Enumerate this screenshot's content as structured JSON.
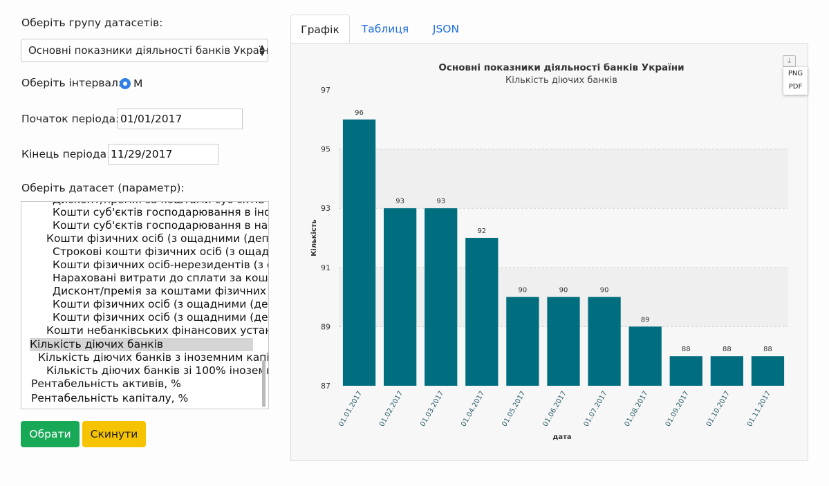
{
  "form": {
    "group_label": "Оберіть групу датасетів:",
    "group_selected": "Основні показники діяльності банків України",
    "interval_label": "Оберіть інтервал:",
    "interval_value": "M",
    "start_label": "Початок періода:",
    "start_value": "01/01/2017",
    "end_label": "Кінець періода:",
    "end_value": "11/29/2017",
    "dataset_label": "Оберіть датасет (параметр):",
    "dataset_items": [
      "Дисконт/премія за коштами суб'єктів",
      "Кошти суб'єктів господарювання в іно",
      "Кошти суб'єктів господарювання в нац",
      "Кошти фізичних осіб (з ощадними (депо",
      "Строкові кошти фізичних осіб (з ощад",
      "Кошти фізичних осіб-нерезидентів (з о",
      "Нараховані витрати до сплати за кошт",
      "Дисконт/премія за коштами фізичних",
      "Кошти фізичних осіб (з ощадними (деп",
      "Кошти фізичних осіб (з ощадними (деп",
      "Кошти небанківських фінансових устан",
      "Кількість діючих банків",
      "Кількість діючих банків з іноземним капі",
      "Кількість діючих банків зі 100% іноземн",
      "Рентабельність активів, %",
      "Рентабельність капіталу, %"
    ],
    "submit_label": "Обрати",
    "reset_label": "Скинути"
  },
  "tabs": [
    "Графік",
    "Таблиця",
    "JSON"
  ],
  "export_menu": [
    "PNG",
    "PDF"
  ],
  "colors": {
    "bar": "#006e7f",
    "accent": "#2f7fe6",
    "tab_link": "#1f6fe0"
  },
  "chart_data": {
    "type": "bar",
    "title": "Основні показники діяльності банків України",
    "subtitle": "Кількість діючих банків",
    "xlabel": "дата",
    "ylabel": "Кількість",
    "categories": [
      "01.01.2017",
      "01.02.2017",
      "01.03.2017",
      "01.04.2017",
      "01.05.2017",
      "01.06.2017",
      "01.07.2017",
      "01.08.2017",
      "01.09.2017",
      "01.10.2017",
      "01.11.2017"
    ],
    "values": [
      96,
      93,
      93,
      92,
      90,
      90,
      90,
      89,
      88,
      88,
      88
    ],
    "ylim": [
      87,
      97
    ],
    "yticks": [
      87,
      89,
      91,
      93,
      95,
      97
    ],
    "grid": true,
    "data_labels": true
  }
}
